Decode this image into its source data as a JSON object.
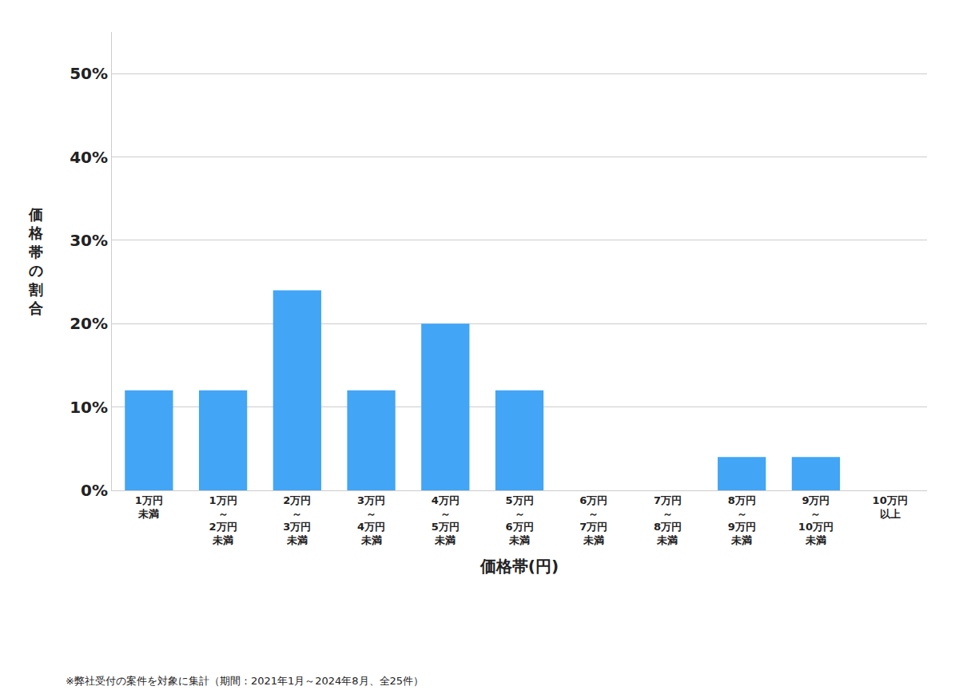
{
  "chart_data": {
    "type": "bar",
    "categories": [
      "1万円\n未満",
      "1万円\n～\n2万円\n未満",
      "2万円\n～\n3万円\n未満",
      "3万円\n～\n4万円\n未満",
      "4万円\n～\n5万円\n未満",
      "5万円\n～\n6万円\n未満",
      "6万円\n～\n7万円\n未満",
      "7万円\n～\n8万円\n未満",
      "8万円\n～\n9万円\n未満",
      "9万円\n～\n10万円\n未満",
      "10万円\n以上"
    ],
    "values": [
      12.0,
      12.0,
      24.0,
      12.0,
      20.0,
      12.0,
      0.0,
      0.0,
      4.0,
      4.0,
      0.0
    ],
    "color": "#42a5f5",
    "xlabel": "価格帯(円)",
    "ylabel": "価格帯の割合",
    "ylim": [
      0,
      55
    ],
    "yticks": [
      {
        "value": 0,
        "label": "0%"
      },
      {
        "value": 10,
        "label": "10%"
      },
      {
        "value": 20,
        "label": "20%"
      },
      {
        "value": 30,
        "label": "30%"
      },
      {
        "value": 40,
        "label": "40%"
      },
      {
        "value": 50,
        "label": "50%"
      }
    ],
    "grid": true,
    "annotations": [
      "※弊社受付の案件を対象に集計（期間：2021年1月～2024年8月、全25件）"
    ]
  }
}
